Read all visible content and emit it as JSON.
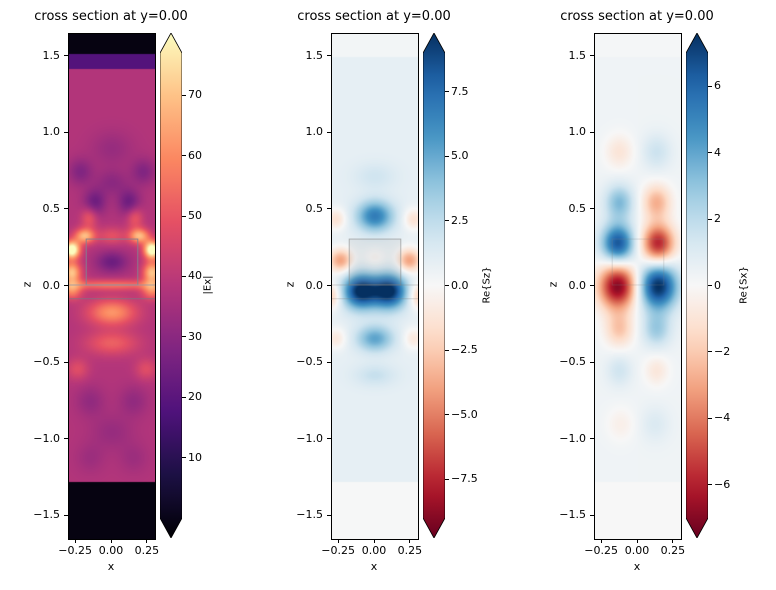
{
  "figure": {
    "background": "#ffffff",
    "foreground": "#000000"
  },
  "chart_data": [
    {
      "type": "heatmap",
      "title": "cross section at y=0.00",
      "xlabel": "x",
      "ylabel": "z",
      "xlim": [
        -0.3,
        0.3
      ],
      "zlim": [
        -1.65,
        1.65
      ],
      "xticks": [
        {
          "v": -0.25,
          "label": "−0.25"
        },
        {
          "v": 0.0,
          "label": "0.00"
        },
        {
          "v": 0.25,
          "label": "0.25"
        }
      ],
      "yticks": [
        {
          "v": 1.5,
          "label": "1.5"
        },
        {
          "v": 1.0,
          "label": "1.0"
        },
        {
          "v": 0.5,
          "label": "0.5"
        },
        {
          "v": 0.0,
          "label": "0.0"
        },
        {
          "v": -0.5,
          "label": "−0.5"
        },
        {
          "v": -1.0,
          "label": "−1.0"
        },
        {
          "v": -1.5,
          "label": "−1.5"
        }
      ],
      "colorbar": {
        "label": "|Ex|",
        "cmap": "magma",
        "vmin": 0,
        "vmax": 77,
        "extend": "both",
        "ticks": [
          {
            "v": 70,
            "label": "70"
          },
          {
            "v": 60,
            "label": "60"
          },
          {
            "v": 50,
            "label": "50"
          },
          {
            "v": 40,
            "label": "40"
          },
          {
            "v": 30,
            "label": "30"
          },
          {
            "v": 20,
            "label": "20"
          },
          {
            "v": 10,
            "label": "10"
          }
        ]
      },
      "field": {
        "base": 38,
        "bands": [
          {
            "z0": 1.52,
            "z1": 1.66,
            "v": 2
          },
          {
            "z0": 1.42,
            "z1": 1.52,
            "v": 20
          },
          {
            "z0": -1.66,
            "z1": -1.28,
            "v": 2
          }
        ],
        "blobs": [
          [
            -0.28,
            0.24,
            0.04,
            0.04,
            46
          ],
          [
            0.28,
            0.24,
            0.04,
            0.04,
            46
          ],
          [
            -0.28,
            0.09,
            0.045,
            0.05,
            30
          ],
          [
            0.28,
            0.09,
            0.045,
            0.05,
            30
          ],
          [
            -0.19,
            0.33,
            0.05,
            0.035,
            28
          ],
          [
            0.19,
            0.33,
            0.05,
            0.035,
            28
          ],
          [
            0,
            0.33,
            0.07,
            0.04,
            10
          ],
          [
            0,
            0.01,
            0.28,
            0.025,
            16
          ],
          [
            -0.28,
            -0.03,
            0.05,
            0.04,
            18
          ],
          [
            0.28,
            -0.03,
            0.05,
            0.04,
            18
          ],
          [
            0,
            -0.17,
            0.12,
            0.06,
            22
          ],
          [
            0,
            -0.37,
            0.13,
            0.055,
            13
          ],
          [
            -0.24,
            -0.54,
            0.055,
            0.05,
            9
          ],
          [
            0.24,
            -0.54,
            0.055,
            0.05,
            9
          ],
          [
            -0.16,
            0.45,
            0.04,
            0.05,
            12
          ],
          [
            0.16,
            0.45,
            0.04,
            0.05,
            12
          ],
          [
            0,
            0.16,
            0.08,
            0.05,
            -13
          ],
          [
            -0.12,
            0.55,
            0.055,
            0.06,
            -13
          ],
          [
            0.12,
            0.55,
            0.055,
            0.06,
            -13
          ],
          [
            0,
            0.68,
            0.08,
            0.06,
            -7
          ],
          [
            -0.22,
            0.75,
            0.06,
            0.06,
            -9
          ],
          [
            0.22,
            0.75,
            0.06,
            0.06,
            -9
          ],
          [
            0,
            0.9,
            0.1,
            0.08,
            -5
          ],
          [
            -0.15,
            -0.75,
            0.07,
            0.07,
            -6
          ],
          [
            0.15,
            -0.75,
            0.07,
            0.07,
            -6
          ],
          [
            0,
            -0.95,
            0.1,
            0.08,
            -5
          ],
          [
            -0.15,
            -1.12,
            0.07,
            0.07,
            -4
          ],
          [
            0.15,
            -1.12,
            0.07,
            0.07,
            -4
          ]
        ]
      },
      "overlays": [
        {
          "type": "rect",
          "x0": -0.18,
          "x1": 0.18,
          "z0": 0.01,
          "z1": 0.31,
          "stroke": "rgba(130,130,145,0.9)",
          "fill": "none"
        },
        {
          "type": "hline",
          "z": 0.01,
          "stroke": "rgba(150,150,165,0.8)"
        },
        {
          "type": "hline",
          "z": -0.08,
          "stroke": "rgba(120,120,135,0.7)"
        }
      ]
    },
    {
      "type": "heatmap",
      "title": "cross section at y=0.00",
      "xlabel": "x",
      "ylabel": "z",
      "xlim": [
        -0.3,
        0.3
      ],
      "zlim": [
        -1.65,
        1.65
      ],
      "xticks": [
        {
          "v": -0.25,
          "label": "−0.25"
        },
        {
          "v": 0.0,
          "label": "0.00"
        },
        {
          "v": 0.25,
          "label": "0.25"
        }
      ],
      "yticks": [
        {
          "v": 1.5,
          "label": "1.5"
        },
        {
          "v": 1.0,
          "label": "1.0"
        },
        {
          "v": 0.5,
          "label": "0.5"
        },
        {
          "v": 0.0,
          "label": "0.0"
        },
        {
          "v": -0.5,
          "label": "−0.5"
        },
        {
          "v": -1.0,
          "label": "−1.0"
        },
        {
          "v": -1.5,
          "label": "−1.5"
        }
      ],
      "colorbar": {
        "label": "Re{Sz}",
        "cmap": "RdBu",
        "vmin": -9,
        "vmax": 9,
        "extend": "both",
        "ticks": [
          {
            "v": 7.5,
            "label": "7.5"
          },
          {
            "v": 5.0,
            "label": "5.0"
          },
          {
            "v": 2.5,
            "label": "2.5"
          },
          {
            "v": 0.0,
            "label": "0.0"
          },
          {
            "v": -2.5,
            "label": "−2.5"
          },
          {
            "v": -5.0,
            "label": "−5.0"
          },
          {
            "v": -7.5,
            "label": "−7.5"
          }
        ]
      },
      "field": {
        "base": 0.8,
        "bands": [
          {
            "z0": -1.66,
            "z1": -1.28,
            "v": 0.05
          },
          {
            "z0": 1.5,
            "z1": 1.66,
            "v": 0.25
          }
        ],
        "blobs": [
          [
            0,
            0.46,
            0.09,
            0.07,
            5.5
          ],
          [
            -0.27,
            0.44,
            0.05,
            0.05,
            -2.2
          ],
          [
            0.27,
            0.44,
            0.05,
            0.05,
            -2.2
          ],
          [
            -0.24,
            0.17,
            0.06,
            0.055,
            -4.5
          ],
          [
            0.24,
            0.17,
            0.06,
            0.055,
            -4.5
          ],
          [
            0,
            0.18,
            0.06,
            0.05,
            -1.2
          ],
          [
            -0.1,
            -0.03,
            0.085,
            0.08,
            8.5
          ],
          [
            0.1,
            -0.03,
            0.085,
            0.08,
            8.5
          ],
          [
            -0.3,
            -0.06,
            0.045,
            0.06,
            -3
          ],
          [
            0.3,
            -0.06,
            0.045,
            0.06,
            -3
          ],
          [
            0,
            -0.34,
            0.09,
            0.06,
            4
          ],
          [
            -0.27,
            -0.34,
            0.05,
            0.05,
            -1.8
          ],
          [
            0.27,
            -0.34,
            0.05,
            0.05,
            -1.8
          ],
          [
            0,
            -0.58,
            0.1,
            0.05,
            1.3
          ],
          [
            0,
            0.72,
            0.1,
            0.06,
            1.0
          ]
        ]
      },
      "overlays": [
        {
          "type": "rect",
          "x0": -0.18,
          "x1": 0.18,
          "z0": 0.01,
          "z1": 0.31,
          "stroke": "rgba(128,128,128,0.55)",
          "fill": "rgba(160,160,160,0.15)"
        },
        {
          "type": "hline",
          "z": 0.01,
          "stroke": "rgba(128,128,128,0.35)"
        },
        {
          "type": "hline",
          "z": -0.08,
          "stroke": "rgba(128,128,128,0.3)"
        }
      ]
    },
    {
      "type": "heatmap",
      "title": "cross section at y=0.00",
      "xlabel": "x",
      "ylabel": "z",
      "xlim": [
        -0.3,
        0.3
      ],
      "zlim": [
        -1.65,
        1.65
      ],
      "xticks": [
        {
          "v": -0.25,
          "label": "−0.25"
        },
        {
          "v": 0.0,
          "label": "0.00"
        },
        {
          "v": 0.25,
          "label": "0.25"
        }
      ],
      "yticks": [
        {
          "v": 1.5,
          "label": "1.5"
        },
        {
          "v": 1.0,
          "label": "1.0"
        },
        {
          "v": 0.5,
          "label": "0.5"
        },
        {
          "v": 0.0,
          "label": "0.0"
        },
        {
          "v": -0.5,
          "label": "−0.5"
        },
        {
          "v": -1.0,
          "label": "−1.0"
        },
        {
          "v": -1.5,
          "label": "−1.5"
        }
      ],
      "colorbar": {
        "label": "Re{Sx}",
        "cmap": "RdBu",
        "vmin": -7,
        "vmax": 7,
        "extend": "both",
        "ticks": [
          {
            "v": 6,
            "label": "6"
          },
          {
            "v": 4,
            "label": "4"
          },
          {
            "v": 2,
            "label": "2"
          },
          {
            "v": 0,
            "label": "0"
          },
          {
            "v": -2,
            "label": "−2"
          },
          {
            "v": -4,
            "label": "−4"
          },
          {
            "v": -6,
            "label": "−6"
          }
        ]
      },
      "field": {
        "base": 0.3,
        "bands": [
          {
            "z0": -1.66,
            "z1": -1.28,
            "v": 0.0
          },
          {
            "z0": 1.5,
            "z1": 1.66,
            "v": 0.1
          }
        ],
        "blobs": [
          [
            -0.13,
            0.88,
            0.07,
            0.08,
            -1.2
          ],
          [
            0.13,
            0.88,
            0.07,
            0.08,
            1.2
          ],
          [
            -0.13,
            0.55,
            0.07,
            0.08,
            2.8
          ],
          [
            0.13,
            0.55,
            0.07,
            0.08,
            -2.8
          ],
          [
            -0.14,
            0.28,
            0.08,
            0.09,
            5.8
          ],
          [
            0.14,
            0.28,
            0.08,
            0.09,
            -5.8
          ],
          [
            -0.14,
            0.0,
            0.095,
            0.105,
            -6.8
          ],
          [
            0.14,
            0.0,
            0.095,
            0.105,
            6.8
          ],
          [
            -0.13,
            -0.28,
            0.07,
            0.08,
            -2.2
          ],
          [
            0.13,
            -0.28,
            0.07,
            0.08,
            2.2
          ],
          [
            -0.13,
            -0.55,
            0.06,
            0.07,
            1.1
          ],
          [
            0.13,
            -0.55,
            0.06,
            0.07,
            -1.1
          ],
          [
            -0.12,
            -0.9,
            0.07,
            0.08,
            -0.7
          ],
          [
            0.12,
            -0.9,
            0.07,
            0.08,
            0.7
          ]
        ]
      },
      "overlays": [
        {
          "type": "rect",
          "x0": -0.18,
          "x1": 0.18,
          "z0": 0.01,
          "z1": 0.31,
          "stroke": "rgba(128,128,128,0.25)",
          "fill": "none"
        }
      ]
    }
  ]
}
